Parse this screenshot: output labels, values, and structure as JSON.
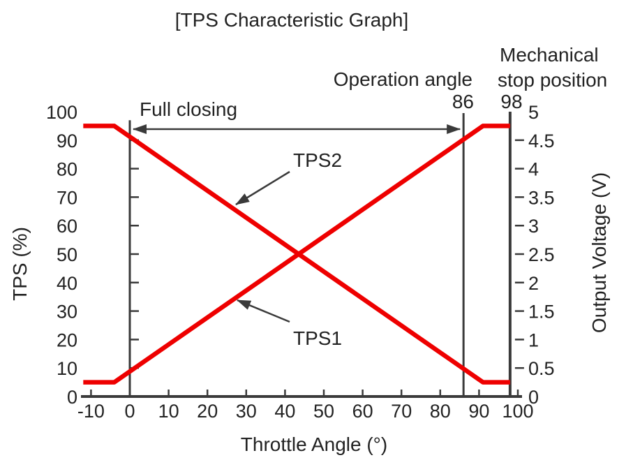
{
  "chart_data": {
    "type": "line",
    "title": "[TPS Characteristic Graph]",
    "xlabel": "Throttle Angle (°)",
    "ylabel_left": "TPS (%)",
    "ylabel_right": "Output Voltage (V)",
    "xlim": [
      -13,
      101
    ],
    "ylim_left": [
      0,
      100
    ],
    "ylim_right": [
      0,
      5
    ],
    "grid": false,
    "x_ticks": [
      -10,
      0,
      10,
      20,
      30,
      40,
      50,
      60,
      70,
      80,
      90,
      100
    ],
    "y_left_ticks": [
      0,
      10,
      20,
      30,
      40,
      50,
      60,
      70,
      80,
      90,
      100
    ],
    "y_right_ticks": [
      0,
      0.5,
      1,
      1.5,
      2,
      2.5,
      3,
      3.5,
      4,
      4.5,
      5
    ],
    "series": [
      {
        "name": "TPS1",
        "color": "#ee0000",
        "axis": "left",
        "points": [
          [
            -12,
            5
          ],
          [
            -4,
            5
          ],
          [
            91,
            95
          ],
          [
            98,
            95
          ]
        ]
      },
      {
        "name": "TPS2",
        "color": "#ee0000",
        "axis": "left",
        "points": [
          [
            -12,
            95
          ],
          [
            -4,
            95
          ],
          [
            91,
            5
          ],
          [
            98,
            5
          ]
        ]
      }
    ],
    "markers": {
      "full_closing_angle": 0,
      "operation_angle": 86,
      "mechanical_stop_angle": 98
    },
    "annotations": {
      "full_closing": "Full closing",
      "operation_angle_label": "Operation angle",
      "operation_angle_value": "86",
      "mechanical_stop_line1": "Mechanical",
      "mechanical_stop_line2": "stop position",
      "mechanical_stop_value": "98"
    },
    "colors": {
      "line": "#ee0000",
      "axis": "#3a3a3a",
      "text": "#222222",
      "background": "#ffffff"
    }
  }
}
